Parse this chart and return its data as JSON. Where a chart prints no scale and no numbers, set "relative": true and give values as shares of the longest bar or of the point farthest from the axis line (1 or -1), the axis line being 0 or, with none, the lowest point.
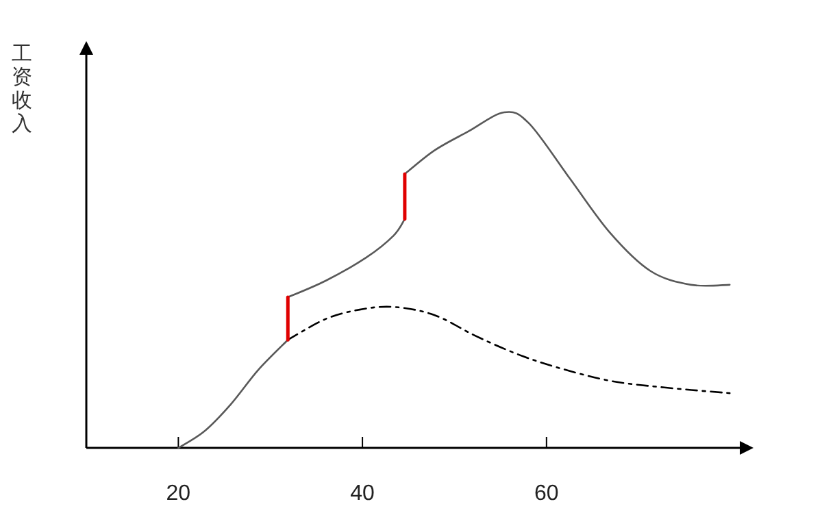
{
  "chart_data": {
    "type": "line",
    "ylabel": "工资收入",
    "relative": true,
    "xlim": [
      10,
      81
    ],
    "xticks": [
      20,
      40,
      60
    ],
    "grid": false,
    "marker": "none",
    "series": [
      {
        "color": "#595959",
        "line_style": "solid",
        "x": [
          20,
          22.8,
          25.7,
          28.7,
          31.9
        ],
        "values": [
          0,
          0.049,
          0.13,
          0.233,
          0.322
        ]
      },
      {
        "color": "#595959",
        "line_style": "solid",
        "x": [
          31.9,
          36,
          40.4,
          43.4,
          44.6
        ],
        "values": [
          0.449,
          0.498,
          0.567,
          0.633,
          0.682
        ]
      },
      {
        "color": "#595959",
        "line_style": "solid",
        "x": [
          44.6,
          47.8,
          51.5,
          55.4,
          58.1,
          62.5,
          66.9,
          71.3,
          75.7,
          79.9
        ],
        "values": [
          0.816,
          0.886,
          0.943,
          1,
          0.967,
          0.804,
          0.641,
          0.527,
          0.486,
          0.486
        ]
      },
      {
        "color": "#000000",
        "line_style": "dashed",
        "x": [
          31.9,
          36,
          39.7,
          43.4,
          47.8,
          52.2,
          56.6,
          61,
          66.9,
          72.8,
          79.9
        ],
        "values": [
          0.322,
          0.384,
          0.412,
          0.42,
          0.396,
          0.335,
          0.282,
          0.241,
          0.2,
          0.18,
          0.163
        ]
      },
      {
        "color": "#e00000",
        "line_style": "solid",
        "x": [
          31.9,
          31.9
        ],
        "values": [
          0.322,
          0.449
        ]
      },
      {
        "color": "#e00000",
        "line_style": "solid",
        "x": [
          44.6,
          44.6
        ],
        "values": [
          0.682,
          0.816
        ]
      }
    ]
  }
}
